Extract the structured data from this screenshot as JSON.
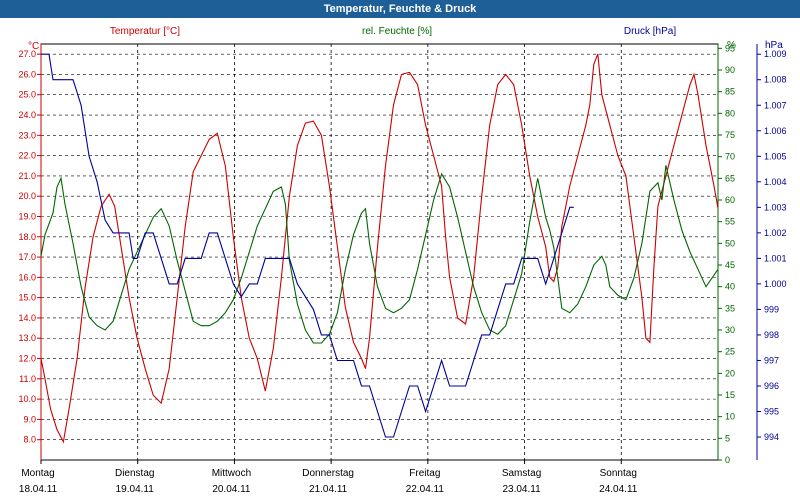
{
  "title": "Temperatur, Feuchte & Druck",
  "chart_data": {
    "type": "line",
    "legend": {
      "temp": "Temperatur [°C]",
      "hum": "rel. Feuchte [%]",
      "press": "Druck [hPa]"
    },
    "axes": {
      "temp": {
        "unit": "°C",
        "ylim": [
          7.0,
          27.5
        ],
        "ticks": [
          "8.0",
          "9.0",
          "10.0",
          "11.0",
          "12.0",
          "13.0",
          "14.0",
          "15.0",
          "16.0",
          "17.0",
          "18.0",
          "19.0",
          "20.0",
          "21.0",
          "22.0",
          "23.0",
          "24.0",
          "25.0",
          "26.0",
          "27.0"
        ]
      },
      "hum": {
        "unit": "%",
        "ylim": [
          0,
          96
        ],
        "ticks": [
          "0",
          "5",
          "10",
          "15",
          "20",
          "25",
          "30",
          "35",
          "40",
          "45",
          "50",
          "55",
          "60",
          "65",
          "70",
          "75",
          "80",
          "85",
          "90",
          "95"
        ]
      },
      "press": {
        "unit": "hPa",
        "ylim": [
          993.1,
          1009.4
        ],
        "ticks": [
          "994",
          "995",
          "996",
          "997",
          "998",
          "999",
          "1.000",
          "1.001",
          "1.002",
          "1.003",
          "1.004",
          "1.005",
          "1.006",
          "1.007",
          "1.008",
          "1.009"
        ]
      }
    },
    "xlabels": [
      {
        "day": "Montag",
        "date": "18.04.11"
      },
      {
        "day": "Dienstag",
        "date": "19.04.11"
      },
      {
        "day": "Mittwoch",
        "date": "20.04.11"
      },
      {
        "day": "Donnerstag",
        "date": "21.04.11"
      },
      {
        "day": "Freitag",
        "date": "22.04.11"
      },
      {
        "day": "Samstag",
        "date": "23.04.11"
      },
      {
        "day": "Sonntag",
        "date": "24.04.11"
      }
    ],
    "x_range_days": [
      0,
      7.0
    ],
    "series": [
      {
        "name": "Temperatur [°C]",
        "axis": "temp",
        "color": "#cc0000",
        "points": [
          [
            0,
            12.0
          ],
          [
            0.05,
            11.0
          ],
          [
            0.12,
            9.5
          ],
          [
            0.2,
            8.5
          ],
          [
            0.28,
            7.9
          ],
          [
            0.35,
            9.5
          ],
          [
            0.45,
            12.0
          ],
          [
            0.55,
            15.5
          ],
          [
            0.65,
            18.0
          ],
          [
            0.75,
            19.5
          ],
          [
            0.85,
            20.1
          ],
          [
            0.92,
            19.5
          ],
          [
            1.0,
            17.5
          ],
          [
            1.1,
            15.0
          ],
          [
            1.2,
            13.0
          ],
          [
            1.3,
            11.5
          ],
          [
            1.4,
            10.2
          ],
          [
            1.5,
            9.8
          ],
          [
            1.6,
            11.5
          ],
          [
            1.7,
            15.0
          ],
          [
            1.8,
            18.5
          ],
          [
            1.9,
            21.2
          ],
          [
            2.0,
            22.0
          ],
          [
            2.1,
            22.8
          ],
          [
            2.2,
            23.1
          ],
          [
            2.3,
            21.5
          ],
          [
            2.4,
            18.0
          ],
          [
            2.5,
            15.0
          ],
          [
            2.6,
            13.0
          ],
          [
            2.7,
            12.0
          ],
          [
            2.8,
            10.4
          ],
          [
            2.9,
            12.5
          ],
          [
            3.0,
            16.0
          ],
          [
            3.1,
            20.0
          ],
          [
            3.2,
            22.5
          ],
          [
            3.3,
            23.6
          ],
          [
            3.4,
            23.7
          ],
          [
            3.5,
            23.0
          ],
          [
            3.6,
            20.5
          ],
          [
            3.7,
            17.5
          ],
          [
            3.8,
            14.5
          ],
          [
            3.9,
            12.8
          ],
          [
            4.0,
            12.0
          ],
          [
            4.05,
            11.5
          ],
          [
            4.1,
            13.0
          ],
          [
            4.2,
            17.5
          ],
          [
            4.3,
            21.5
          ],
          [
            4.4,
            24.5
          ],
          [
            4.5,
            26.0
          ],
          [
            4.6,
            26.1
          ],
          [
            4.7,
            25.5
          ],
          [
            4.8,
            23.5
          ],
          [
            4.9,
            22.0
          ],
          [
            5.0,
            20.5
          ],
          [
            5.05,
            18.0
          ],
          [
            5.1,
            16.0
          ],
          [
            5.2,
            14.0
          ],
          [
            5.3,
            13.7
          ],
          [
            5.4,
            16.0
          ],
          [
            5.5,
            20.0
          ],
          [
            5.6,
            23.5
          ],
          [
            5.7,
            25.5
          ],
          [
            5.8,
            26.0
          ],
          [
            5.9,
            25.5
          ],
          [
            6.0,
            23.5
          ],
          [
            6.1,
            21.0
          ],
          [
            6.2,
            19.0
          ],
          [
            6.3,
            17.5
          ],
          [
            6.35,
            16.0
          ],
          [
            6.4,
            15.8
          ],
          [
            6.45,
            16.5
          ],
          [
            6.5,
            18.5
          ],
          [
            6.6,
            20.5
          ],
          [
            6.7,
            22.0
          ],
          [
            6.8,
            23.5
          ],
          [
            6.85,
            24.5
          ],
          [
            6.9,
            26.5
          ],
          [
            6.95,
            27.0
          ],
          [
            7.0,
            25.0
          ],
          [
            7.1,
            23.5
          ],
          [
            7.2,
            22.0
          ],
          [
            7.3,
            21.0
          ],
          [
            7.35,
            19.5
          ],
          [
            7.4,
            18.0
          ],
          [
            7.5,
            15.0
          ],
          [
            7.55,
            13.0
          ],
          [
            7.6,
            12.8
          ],
          [
            7.65,
            16.5
          ],
          [
            7.7,
            19.5
          ],
          [
            7.8,
            21.0
          ],
          [
            7.9,
            22.5
          ],
          [
            8.0,
            24.0
          ],
          [
            8.1,
            25.5
          ],
          [
            8.15,
            26.0
          ],
          [
            8.2,
            25.0
          ],
          [
            8.3,
            22.5
          ],
          [
            8.4,
            20.5
          ],
          [
            8.45,
            19.4
          ]
        ]
      },
      {
        "name": "rel. Feuchte [%]",
        "axis": "hum",
        "color": "#006600",
        "points": [
          [
            0,
            47
          ],
          [
            0.05,
            52
          ],
          [
            0.15,
            57
          ],
          [
            0.2,
            63
          ],
          [
            0.25,
            65
          ],
          [
            0.3,
            59
          ],
          [
            0.4,
            50
          ],
          [
            0.5,
            40
          ],
          [
            0.6,
            33
          ],
          [
            0.7,
            31
          ],
          [
            0.8,
            30
          ],
          [
            0.9,
            32
          ],
          [
            1.0,
            38
          ],
          [
            1.1,
            44
          ],
          [
            1.2,
            48
          ],
          [
            1.3,
            52
          ],
          [
            1.4,
            56
          ],
          [
            1.5,
            58
          ],
          [
            1.6,
            54
          ],
          [
            1.7,
            46
          ],
          [
            1.8,
            39
          ],
          [
            1.9,
            32
          ],
          [
            2.0,
            31
          ],
          [
            2.1,
            31
          ],
          [
            2.2,
            32
          ],
          [
            2.3,
            34
          ],
          [
            2.4,
            37
          ],
          [
            2.5,
            42
          ],
          [
            2.6,
            48
          ],
          [
            2.7,
            54
          ],
          [
            2.8,
            58
          ],
          [
            2.9,
            62
          ],
          [
            3.0,
            63
          ],
          [
            3.05,
            59
          ],
          [
            3.1,
            46
          ],
          [
            3.2,
            36
          ],
          [
            3.3,
            30
          ],
          [
            3.4,
            27
          ],
          [
            3.5,
            27
          ],
          [
            3.6,
            29
          ],
          [
            3.7,
            34
          ],
          [
            3.8,
            44
          ],
          [
            3.9,
            52
          ],
          [
            4.0,
            57
          ],
          [
            4.05,
            58
          ],
          [
            4.1,
            50
          ],
          [
            4.2,
            40
          ],
          [
            4.3,
            35
          ],
          [
            4.4,
            34
          ],
          [
            4.5,
            35
          ],
          [
            4.6,
            37
          ],
          [
            4.7,
            44
          ],
          [
            4.8,
            52
          ],
          [
            4.9,
            60
          ],
          [
            5.0,
            66
          ],
          [
            5.1,
            63
          ],
          [
            5.2,
            56
          ],
          [
            5.3,
            48
          ],
          [
            5.4,
            40
          ],
          [
            5.5,
            34
          ],
          [
            5.6,
            30
          ],
          [
            5.7,
            29
          ],
          [
            5.8,
            31
          ],
          [
            5.9,
            37
          ],
          [
            6.0,
            43
          ],
          [
            6.1,
            55
          ],
          [
            6.2,
            65
          ],
          [
            6.3,
            56
          ],
          [
            6.35,
            53
          ],
          [
            6.4,
            49
          ],
          [
            6.5,
            35
          ],
          [
            6.6,
            34
          ],
          [
            6.7,
            36
          ],
          [
            6.8,
            40
          ],
          [
            6.9,
            45
          ],
          [
            7.0,
            47
          ],
          [
            7.05,
            45
          ],
          [
            7.1,
            40
          ],
          [
            7.2,
            38
          ],
          [
            7.3,
            37
          ],
          [
            7.4,
            42
          ],
          [
            7.5,
            50
          ],
          [
            7.6,
            62
          ],
          [
            7.7,
            64
          ],
          [
            7.75,
            60
          ],
          [
            7.8,
            68
          ],
          [
            7.9,
            60
          ],
          [
            8.0,
            53
          ],
          [
            8.1,
            48
          ],
          [
            8.2,
            44
          ],
          [
            8.3,
            40
          ],
          [
            8.45,
            44
          ]
        ]
      },
      {
        "name": "Druck [hPa]",
        "axis": "press",
        "color": "#000099",
        "points": [
          [
            0,
            1009
          ],
          [
            0.1,
            1009
          ],
          [
            0.15,
            1008
          ],
          [
            0.4,
            1008
          ],
          [
            0.45,
            1007.5
          ],
          [
            0.5,
            1007
          ],
          [
            0.55,
            1006
          ],
          [
            0.6,
            1005
          ],
          [
            0.7,
            1004
          ],
          [
            0.8,
            1002.5
          ],
          [
            0.9,
            1002
          ],
          [
            1.0,
            1002
          ],
          [
            1.1,
            1002
          ],
          [
            1.15,
            1001
          ],
          [
            1.2,
            1001
          ],
          [
            1.3,
            1002
          ],
          [
            1.4,
            1002
          ],
          [
            1.5,
            1001
          ],
          [
            1.6,
            1000
          ],
          [
            1.7,
            1000
          ],
          [
            1.8,
            1001
          ],
          [
            1.9,
            1001
          ],
          [
            2.0,
            1001
          ],
          [
            2.1,
            1002
          ],
          [
            2.2,
            1002
          ],
          [
            2.3,
            1001
          ],
          [
            2.4,
            1000
          ],
          [
            2.5,
            999.5
          ],
          [
            2.6,
            1000
          ],
          [
            2.7,
            1000
          ],
          [
            2.8,
            1001
          ],
          [
            2.9,
            1001
          ],
          [
            3.0,
            1001
          ],
          [
            3.1,
            1001
          ],
          [
            3.2,
            1000
          ],
          [
            3.3,
            999.5
          ],
          [
            3.4,
            999
          ],
          [
            3.5,
            998
          ],
          [
            3.6,
            998
          ],
          [
            3.7,
            997
          ],
          [
            3.8,
            997
          ],
          [
            3.9,
            997
          ],
          [
            4.0,
            996
          ],
          [
            4.1,
            996
          ],
          [
            4.2,
            995
          ],
          [
            4.3,
            994
          ],
          [
            4.4,
            994
          ],
          [
            4.5,
            995
          ],
          [
            4.6,
            996
          ],
          [
            4.7,
            996
          ],
          [
            4.8,
            995
          ],
          [
            4.9,
            996
          ],
          [
            5.0,
            997
          ],
          [
            5.1,
            996
          ],
          [
            5.2,
            996
          ],
          [
            5.3,
            996
          ],
          [
            5.4,
            997
          ],
          [
            5.5,
            998
          ],
          [
            5.6,
            998
          ],
          [
            5.7,
            999
          ],
          [
            5.8,
            1000
          ],
          [
            5.9,
            1000
          ],
          [
            6.0,
            1001
          ],
          [
            6.1,
            1001
          ],
          [
            6.2,
            1001
          ],
          [
            6.3,
            1000
          ],
          [
            6.4,
            1001
          ],
          [
            6.5,
            1002
          ],
          [
            6.6,
            1003
          ],
          [
            6.65,
            1003
          ]
        ]
      }
    ]
  }
}
